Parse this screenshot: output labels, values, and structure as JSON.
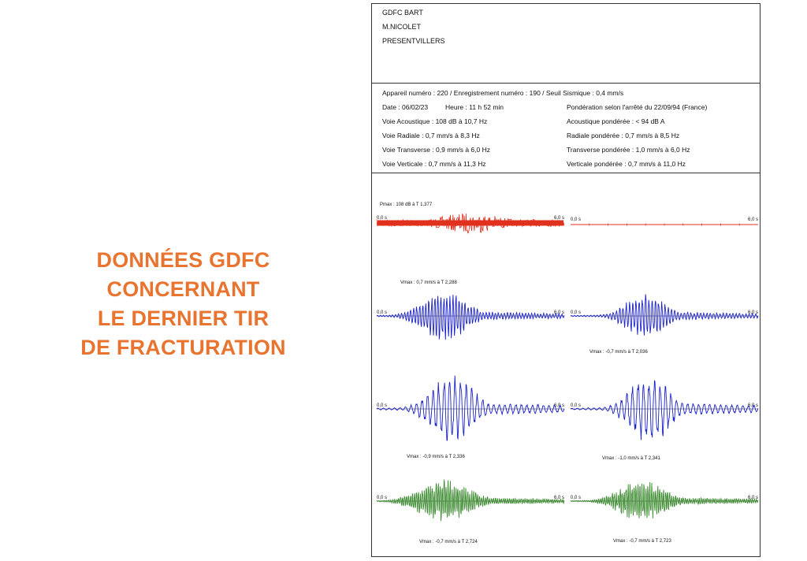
{
  "heading": {
    "lines": [
      "DONNÉES GDFC",
      "CONCERNANT",
      "LE DERNIER TIR",
      "DE FRACTURATION"
    ],
    "color": "#e8742f"
  },
  "report": {
    "header_lines": [
      "GDFC BART",
      "M.NICOLET",
      "PRESENTVILLERS"
    ],
    "info": {
      "line1": "Appareil numéro : 220  /  Enregistrement numéro : 190  /  Seuil Sismique : 0,4 mm/s",
      "date": "Date : 06/02/23",
      "time": "Heure : 11 h 52 min",
      "ponderation": "Pondération selon l'arrêté du 22/09/94 (France)",
      "left": [
        "Voie Acoustique : 108 dB à 10,7 Hz",
        "Voie Radiale : 0,7 mm/s à 8,3 Hz",
        "Voie Transverse : 0,9 mm/s à 6,0 Hz",
        "Voie Verticale : 0,7 mm/s à 11,3 Hz"
      ],
      "right": [
        "Acoustique pondérée : < 94 dB A",
        "Radiale pondérée : 0,7 mm/s à 8,5 Hz",
        "Transverse pondérée : 1,0 mm/s à 6,0 Hz",
        "Verticale pondérée : 0,7 mm/s à 11,0 Hz"
      ]
    },
    "time_start": "0,0 s",
    "time_end": "6,0 s",
    "colors": {
      "acoustic": "#e0301e",
      "radial": "#1b22c9",
      "transverse": "#1b22c9",
      "vertical": "#3a8a2e"
    },
    "traces": {
      "acoustic_raw": {
        "label": "Pmax : 108 dB à T 1,377"
      },
      "acoustic_weighted": {
        "label": ""
      },
      "radial_raw": {
        "label": "Vmax : 0,7 mm/s à T 2,288"
      },
      "radial_weighted": {
        "label": "Vmax : -0,7 mm/s à T 2,036"
      },
      "transverse_raw": {
        "label": "Vmax : -0,9 mm/s à T 2,336"
      },
      "transverse_weighted": {
        "label": "Vmax : -1,0 mm/s à T 2,341"
      },
      "vertical_raw": {
        "label": "Vmax : -0,7 mm/s à T 2,724"
      },
      "vertical_weighted": {
        "label": "Vmax : -0,7 mm/s à T 2,723"
      }
    }
  }
}
